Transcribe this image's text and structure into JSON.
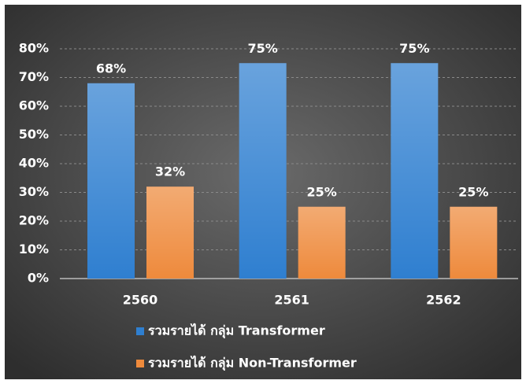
{
  "chart_data": {
    "type": "bar",
    "categories": [
      "2560",
      "2561",
      "2562"
    ],
    "series": [
      {
        "name": "รวมรายได้ กลุ่ม Transformer",
        "color": "#2f7fd0",
        "values": [
          68,
          75,
          75
        ],
        "value_labels": [
          "68%",
          "75%",
          "75%"
        ]
      },
      {
        "name": "รวมรายได้ กลุ่ม Non-Transformer",
        "color": "#ee8a3c",
        "values": [
          32,
          25,
          25
        ],
        "value_labels": [
          "32%",
          "25%",
          "25%"
        ]
      }
    ],
    "ylim": [
      0,
      80
    ],
    "yticks": [
      {
        "value": 0,
        "label": "0%"
      },
      {
        "value": 10,
        "label": "10%"
      },
      {
        "value": 20,
        "label": "20%"
      },
      {
        "value": 30,
        "label": "30%"
      },
      {
        "value": 40,
        "label": "40%"
      },
      {
        "value": 50,
        "label": "50%"
      },
      {
        "value": 60,
        "label": "60%"
      },
      {
        "value": 70,
        "label": "70%"
      },
      {
        "value": 80,
        "label": "80%"
      }
    ],
    "grid": true,
    "legend": "bottom"
  }
}
